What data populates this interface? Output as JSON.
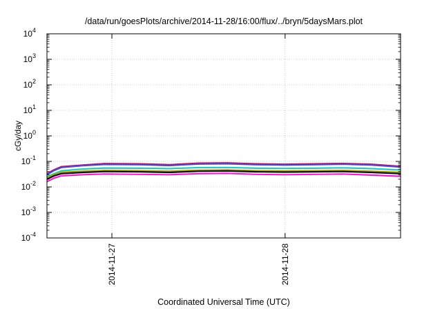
{
  "chart_data": {
    "type": "line",
    "title": "/data/run/goesPlots/archive/2014-11-28/16:00/flux/../bryn/5daysMars.plot",
    "xlabel": "Coordinated Universal Time (UTC)",
    "ylabel": "cGy/day",
    "yscale": "log",
    "ylim": [
      0.0001,
      10000
    ],
    "xlim": [
      "2014-11-26T15:00",
      "2014-11-28T16:00"
    ],
    "grid": true,
    "y_ticks": [
      {
        "base": "10",
        "exp": "4"
      },
      {
        "base": "10",
        "exp": "3"
      },
      {
        "base": "10",
        "exp": "2"
      },
      {
        "base": "10",
        "exp": "1"
      },
      {
        "base": "10",
        "exp": "0"
      },
      {
        "base": "10",
        "exp": "-1"
      },
      {
        "base": "10",
        "exp": "-2"
      },
      {
        "base": "10",
        "exp": "-3"
      },
      {
        "base": "10",
        "exp": "-4"
      }
    ],
    "y_tick_values": [
      10000,
      1000,
      100,
      10,
      1,
      0.1,
      0.01,
      0.001,
      0.0001
    ],
    "x_ticks": [
      {
        "label": "2014-11-27",
        "value": "2014-11-27T00:00"
      },
      {
        "label": "2014-11-28",
        "value": "2014-11-28T00:00"
      }
    ],
    "x": [
      "2014-11-26T15:00",
      "2014-11-26T16:00",
      "2014-11-26T17:00",
      "2014-11-26T20:00",
      "2014-11-26T23:00",
      "2014-11-27T04:00",
      "2014-11-27T08:00",
      "2014-11-27T12:00",
      "2014-11-27T16:00",
      "2014-11-27T20:00",
      "2014-11-28T00:00",
      "2014-11-28T04:00",
      "2014-11-28T08:00",
      "2014-11-28T12:00",
      "2014-11-28T16:00"
    ],
    "series": [
      {
        "color": "#c0143c",
        "values": [
          0.033,
          0.047,
          0.062,
          0.072,
          0.082,
          0.08,
          0.074,
          0.085,
          0.087,
          0.08,
          0.077,
          0.08,
          0.083,
          0.077,
          0.064
        ]
      },
      {
        "color": "#5544cc",
        "values": [
          0.03,
          0.044,
          0.058,
          0.068,
          0.076,
          0.074,
          0.069,
          0.079,
          0.081,
          0.074,
          0.072,
          0.074,
          0.078,
          0.072,
          0.06
        ]
      },
      {
        "color": "#2ec4c4",
        "values": [
          0.025,
          0.033,
          0.043,
          0.05,
          0.055,
          0.054,
          0.052,
          0.057,
          0.058,
          0.054,
          0.053,
          0.054,
          0.056,
          0.052,
          0.046
        ]
      },
      {
        "color": "#a0a000",
        "values": [
          0.022,
          0.03,
          0.037,
          0.041,
          0.044,
          0.043,
          0.041,
          0.045,
          0.046,
          0.043,
          0.042,
          0.043,
          0.044,
          0.041,
          0.037
        ]
      },
      {
        "color": "#111111",
        "values": [
          0.02,
          0.027,
          0.033,
          0.037,
          0.04,
          0.039,
          0.037,
          0.041,
          0.042,
          0.039,
          0.038,
          0.039,
          0.04,
          0.037,
          0.033
        ]
      },
      {
        "color": "#ee22cc",
        "values": [
          0.016,
          0.022,
          0.027,
          0.03,
          0.032,
          0.031,
          0.03,
          0.033,
          0.034,
          0.031,
          0.03,
          0.031,
          0.032,
          0.029,
          0.026
        ]
      }
    ]
  }
}
